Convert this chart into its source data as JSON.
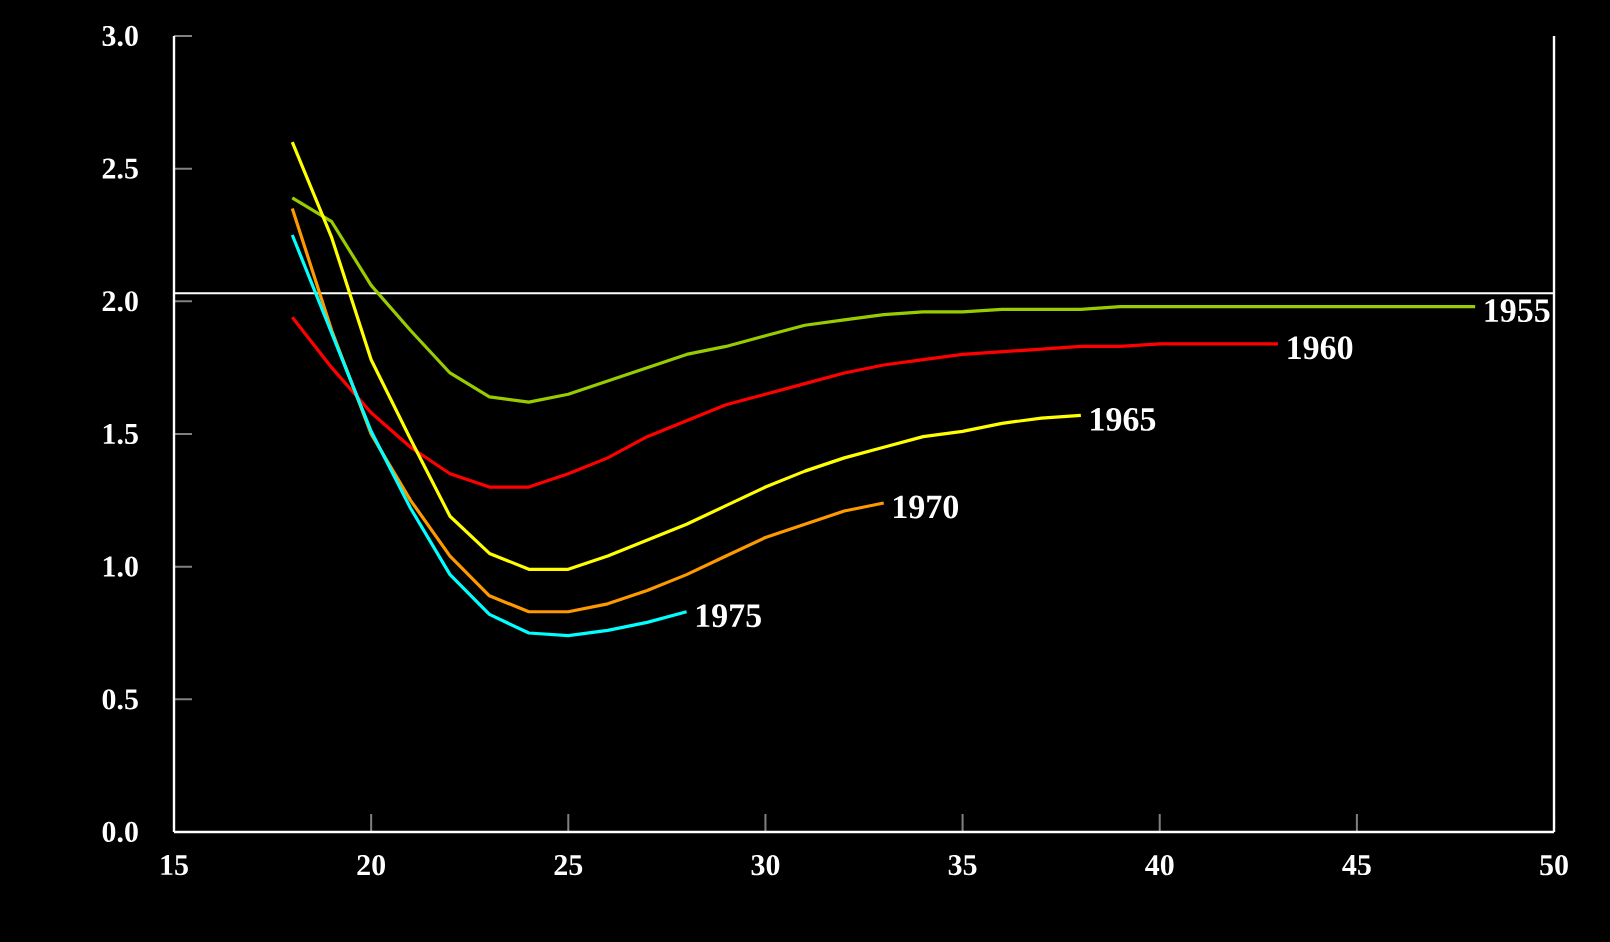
{
  "chart_data": {
    "type": "line",
    "xlim": [
      15,
      50
    ],
    "ylim": [
      0,
      3.0
    ],
    "xticks": [
      15,
      20,
      25,
      30,
      35,
      40,
      45,
      50
    ],
    "yticks": [
      {
        "value": 0,
        "label": "0.0"
      },
      {
        "value": 0.5,
        "label": "0.5"
      },
      {
        "value": 1.0,
        "label": "1.0"
      },
      {
        "value": 1.5,
        "label": "1.5"
      },
      {
        "value": 2.0,
        "label": "2.0"
      },
      {
        "value": 2.5,
        "label": "2.5"
      },
      {
        "value": 3.0,
        "label": "3.0"
      }
    ],
    "grid": false,
    "legend": false,
    "marker": "none",
    "line_style": "solid",
    "ref_lines": [
      {
        "axis": "y",
        "value": 2.03,
        "color": "#ffffff"
      }
    ],
    "series": [
      {
        "name": "1955",
        "color": "#99cc00",
        "x": [
          18,
          19,
          20,
          21,
          22,
          23,
          24,
          25,
          26,
          27,
          28,
          29,
          30,
          31,
          32,
          33,
          34,
          35,
          36,
          37,
          38,
          39,
          40,
          41,
          42,
          43,
          44,
          45,
          46,
          47,
          48
        ],
        "values": [
          2.39,
          2.3,
          2.06,
          1.89,
          1.73,
          1.64,
          1.62,
          1.65,
          1.7,
          1.75,
          1.8,
          1.83,
          1.87,
          1.91,
          1.93,
          1.95,
          1.96,
          1.96,
          1.97,
          1.97,
          1.97,
          1.98,
          1.98,
          1.98,
          1.98,
          1.98,
          1.98,
          1.98,
          1.98,
          1.98,
          1.98
        ]
      },
      {
        "name": "1960",
        "color": "#ff0000",
        "x": [
          18,
          19,
          20,
          21,
          22,
          23,
          24,
          25,
          26,
          27,
          28,
          29,
          30,
          31,
          32,
          33,
          34,
          35,
          36,
          37,
          38,
          39,
          40,
          41,
          42,
          43
        ],
        "values": [
          1.94,
          1.75,
          1.58,
          1.45,
          1.35,
          1.3,
          1.3,
          1.35,
          1.41,
          1.49,
          1.55,
          1.61,
          1.65,
          1.69,
          1.73,
          1.76,
          1.78,
          1.8,
          1.81,
          1.82,
          1.83,
          1.83,
          1.84,
          1.84,
          1.84,
          1.84
        ]
      },
      {
        "name": "1965",
        "color": "#ffff00",
        "x": [
          18,
          19,
          20,
          21,
          22,
          23,
          24,
          25,
          26,
          27,
          28,
          29,
          30,
          31,
          32,
          33,
          34,
          35,
          36,
          37,
          38
        ],
        "values": [
          2.6,
          2.24,
          1.78,
          1.48,
          1.19,
          1.05,
          0.99,
          0.99,
          1.04,
          1.1,
          1.16,
          1.23,
          1.3,
          1.36,
          1.41,
          1.45,
          1.49,
          1.51,
          1.54,
          1.56,
          1.57
        ]
      },
      {
        "name": "1970",
        "color": "#ff9900",
        "x": [
          18,
          19,
          20,
          21,
          22,
          23,
          24,
          25,
          26,
          27,
          28,
          29,
          30,
          31,
          32,
          33
        ],
        "values": [
          2.35,
          1.89,
          1.5,
          1.25,
          1.04,
          0.89,
          0.83,
          0.83,
          0.86,
          0.91,
          0.97,
          1.04,
          1.11,
          1.16,
          1.21,
          1.24
        ]
      },
      {
        "name": "1975",
        "color": "#00ffff",
        "x": [
          18,
          19,
          20,
          21,
          22,
          23,
          24,
          25,
          26,
          27,
          28
        ],
        "values": [
          2.25,
          1.88,
          1.51,
          1.22,
          0.97,
          0.82,
          0.75,
          0.74,
          0.76,
          0.79,
          0.83
        ]
      }
    ]
  }
}
